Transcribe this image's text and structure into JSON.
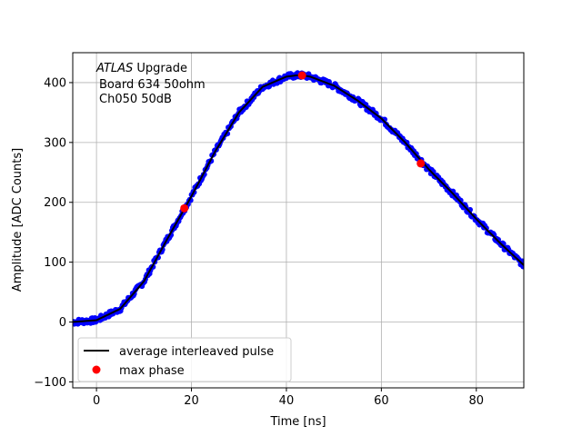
{
  "chart_data": {
    "type": "scatter",
    "title": "",
    "xlabel": "Time [ns]",
    "ylabel": "Amplitude [ADC Counts]",
    "xlim": [
      -5,
      90
    ],
    "ylim": [
      -110,
      450
    ],
    "xticks": [
      0,
      20,
      40,
      60,
      80
    ],
    "yticks": [
      -100,
      0,
      100,
      200,
      300,
      400
    ],
    "grid": true,
    "legend": {
      "placement": "lower-left"
    },
    "annotation": {
      "italic_part": "ATLAS",
      "line1_rest": " Upgrade",
      "line2": "Board 634 50ohm",
      "line3": "Ch050 50dB"
    },
    "colors": {
      "samples": "#0000ff",
      "average": "#000000",
      "max_phase": "#ff0000"
    },
    "series": [
      {
        "name": "",
        "kind": "scatter",
        "color": "#0000ff",
        "x": [
          -5,
          0,
          5,
          10,
          15,
          20,
          25,
          30,
          35,
          40,
          42,
          43.5,
          45,
          50,
          55,
          60,
          65,
          70,
          75,
          80,
          85,
          90
        ],
        "y": [
          0,
          3,
          22,
          68,
          140,
          210,
          285,
          350,
          393,
          410,
          412,
          412,
          410,
          395,
          370,
          340,
          300,
          255,
          215,
          172,
          132,
          95
        ]
      },
      {
        "name": "average interleaved pulse",
        "kind": "line",
        "color": "#000000",
        "x": [
          -5,
          0,
          5,
          10,
          15,
          20,
          25,
          30,
          35,
          40,
          42,
          43.5,
          45,
          50,
          55,
          60,
          65,
          70,
          75,
          80,
          85,
          90
        ],
        "y": [
          0,
          3,
          22,
          68,
          140,
          210,
          285,
          350,
          393,
          410,
          412,
          412,
          410,
          395,
          370,
          340,
          300,
          255,
          215,
          172,
          132,
          95
        ]
      },
      {
        "name": "max phase",
        "kind": "marker",
        "color": "#ff0000",
        "x": [
          18.5,
          43.3,
          68.3
        ],
        "y": [
          190,
          412,
          265
        ]
      }
    ]
  }
}
